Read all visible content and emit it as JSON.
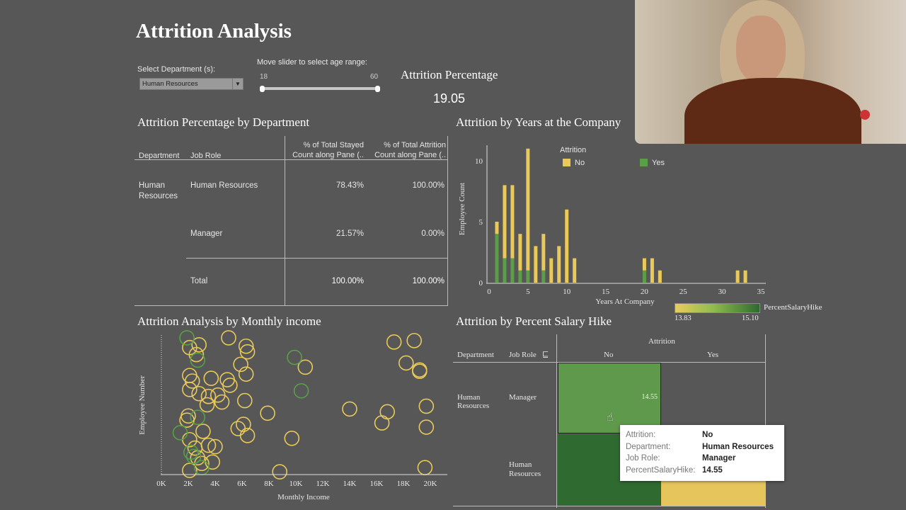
{
  "header": {
    "title": "Attrition Analysis"
  },
  "filters": {
    "department_label": "Select Department (s):",
    "department_value": "Human Resources",
    "age_label": "Move slider to select age range:",
    "age_min": "18",
    "age_max": "60"
  },
  "kpi": {
    "label": "Attrition Percentage",
    "value": "19.05"
  },
  "dept_table": {
    "title": "Attrition Percentage by Department",
    "headers": [
      "Department",
      "Job Role",
      "% of Total Stayed Count along Pane (..",
      "% of Total Attrition Count along Pane (.."
    ],
    "department": "Human Resources",
    "rows": [
      {
        "role": "Human Resources",
        "stayed": "78.43%",
        "attrition": "100.00%"
      },
      {
        "role": "Manager",
        "stayed": "21.57%",
        "attrition": "0.00%"
      },
      {
        "role": "Total",
        "stayed": "100.00%",
        "attrition": "100.00%"
      }
    ]
  },
  "chart_data": [
    {
      "type": "bar",
      "title": "Attrition by Years at the Company",
      "xlabel": "Years At Company",
      "ylabel": "Employee Count",
      "xlim": [
        0,
        35
      ],
      "ylim": [
        0,
        11.5
      ],
      "xticks": [
        "0",
        "5",
        "10",
        "15",
        "20",
        "25",
        "30",
        "35"
      ],
      "yticks": [
        "0",
        "5",
        "10"
      ],
      "legend_title": "Attrition",
      "stacked": true,
      "x": [
        1,
        2,
        3,
        4,
        5,
        6,
        7,
        8,
        9,
        10,
        11,
        20,
        21,
        22,
        32,
        33
      ],
      "series": [
        {
          "name": "Yes",
          "color": "#5b9e48",
          "values": [
            4,
            2,
            2,
            1,
            1,
            0,
            1,
            0,
            0,
            0,
            0,
            1,
            0,
            0,
            0,
            0
          ]
        },
        {
          "name": "No",
          "color": "#e8c95a",
          "values": [
            1,
            6,
            6,
            3,
            10,
            3,
            3,
            2,
            3,
            6,
            2,
            1,
            2,
            1,
            1,
            1
          ]
        }
      ]
    },
    {
      "type": "scatter",
      "title": "Attrition Analysis by Monthly income",
      "xlabel": "Monthly Income",
      "ylabel": "Employee Number",
      "xlim": [
        0,
        21
      ],
      "xticks": [
        "0K",
        "2K",
        "4K",
        "6K",
        "8K",
        "10K",
        "12K",
        "14K",
        "16K",
        "18K",
        "20K"
      ],
      "ylim": [
        0,
        100
      ],
      "series": [
        {
          "name": "No",
          "color": "#e8c95a",
          "points": [
            [
              2.1,
              91
            ],
            [
              2.8,
              93
            ],
            [
              2.6,
              86
            ],
            [
              5.0,
              98
            ],
            [
              6.3,
              92
            ],
            [
              6.4,
              88
            ],
            [
              5.9,
              79
            ],
            [
              6.3,
              72
            ],
            [
              10.7,
              77
            ],
            [
              17.3,
              95
            ],
            [
              18.8,
              96
            ],
            [
              18.2,
              80
            ],
            [
              19.2,
              75
            ],
            [
              19.2,
              74
            ],
            [
              2.1,
              71
            ],
            [
              2.3,
              67
            ],
            [
              2.1,
              61
            ],
            [
              2.8,
              58
            ],
            [
              3.7,
              69
            ],
            [
              4.9,
              68
            ],
            [
              5.1,
              64
            ],
            [
              3.5,
              56
            ],
            [
              4.2,
              57
            ],
            [
              4.5,
              52
            ],
            [
              3.4,
              50
            ],
            [
              6.2,
              53
            ],
            [
              7.9,
              44
            ],
            [
              14.0,
              47
            ],
            [
              16.8,
              45
            ],
            [
              16.4,
              37
            ],
            [
              19.7,
              49
            ],
            [
              19.7,
              34
            ],
            [
              2.0,
              42
            ],
            [
              1.9,
              39
            ],
            [
              3.1,
              31
            ],
            [
              6.1,
              36
            ],
            [
              5.7,
              33
            ],
            [
              6.4,
              28
            ],
            [
              9.7,
              26
            ],
            [
              2.1,
              25
            ],
            [
              2.5,
              19
            ],
            [
              4.0,
              20
            ],
            [
              3.5,
              21
            ],
            [
              2.7,
              12
            ],
            [
              3.0,
              8
            ],
            [
              3.8,
              9
            ],
            [
              2.1,
              3
            ],
            [
              8.8,
              2
            ],
            [
              19.6,
              5
            ]
          ]
        },
        {
          "name": "Yes",
          "color": "#5b9e48",
          "points": [
            [
              1.9,
              98
            ],
            [
              2.7,
              82
            ],
            [
              9.9,
              84
            ],
            [
              10.4,
              60
            ],
            [
              2.7,
              41
            ],
            [
              1.4,
              30
            ],
            [
              2.2,
              16
            ],
            [
              2.4,
              13
            ],
            [
              3.0,
              5
            ]
          ]
        }
      ]
    },
    {
      "type": "heatmap",
      "title": "Attrition by Percent Salary Hike",
      "column_header": "Attrition",
      "row_headers": [
        "Department",
        "Job Role"
      ],
      "columns": [
        "No",
        "Yes"
      ],
      "department": "Human Resources",
      "rows": [
        "Manager",
        "Human Resources"
      ],
      "cells": [
        [
          {
            "color": "#5f9a4c",
            "label": "14.55"
          },
          null
        ],
        [
          {
            "color": "#2f6a31",
            "label": ""
          },
          {
            "color": "#e6c65c",
            "label": ""
          }
        ]
      ],
      "legend_title": "PercentSalaryHike",
      "legend_min": "13.83",
      "legend_max": "15.10"
    }
  ],
  "tooltip": [
    {
      "key": "Attrition:",
      "value": "No"
    },
    {
      "key": "Department:",
      "value": "Human Resources"
    },
    {
      "key": "Job Role:",
      "value": "Manager"
    },
    {
      "key": "PercentSalaryHike:",
      "value": "14.55"
    }
  ]
}
